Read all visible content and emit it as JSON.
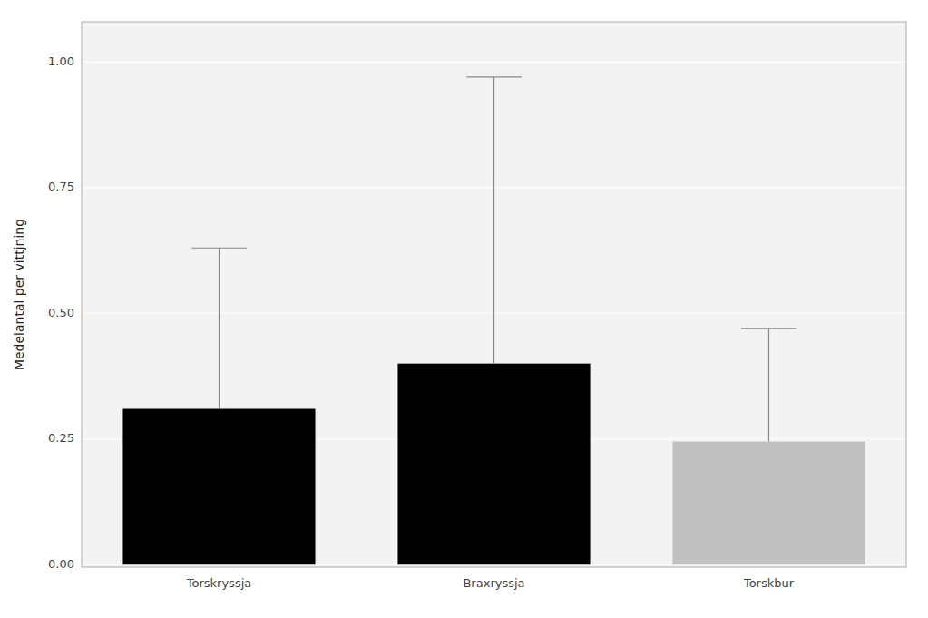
{
  "chart_data": {
    "type": "bar",
    "categories": [
      "Torskryssja",
      "Braxryssja",
      "Torskbur"
    ],
    "values": [
      0.31,
      0.4,
      0.245
    ],
    "error_upper": [
      0.63,
      0.97,
      0.47
    ],
    "colors": [
      "#000000",
      "#000000",
      "#c0c0c0"
    ],
    "ylabel": "Medelantal per vittjning",
    "ylim": [
      -0.005,
      1.08
    ],
    "yticks": [
      {
        "value": 0.0,
        "label": "0.00"
      },
      {
        "value": 0.25,
        "label": "0.25"
      },
      {
        "value": 0.5,
        "label": "0.50"
      },
      {
        "value": 0.75,
        "label": "0.75"
      },
      {
        "value": 1.0,
        "label": "1.00"
      }
    ],
    "grid": true
  }
}
